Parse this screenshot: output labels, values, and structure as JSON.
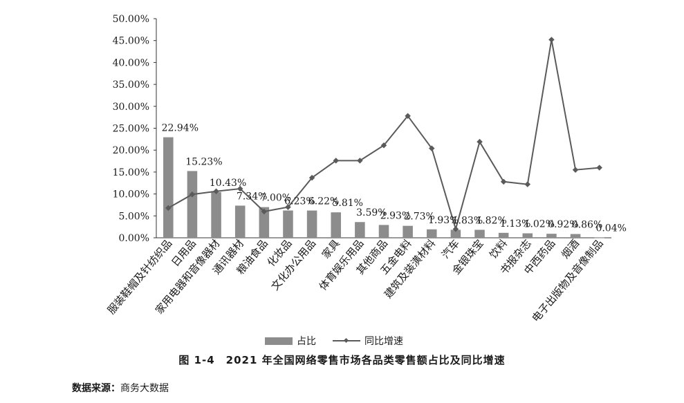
{
  "chart_data": {
    "type": "bar",
    "categories": [
      "服装鞋帽及针纺织品",
      "日用品",
      "家用电器和音像器材",
      "通讯器材",
      "粮油食品",
      "化妆品",
      "文化办公用品",
      "家具",
      "体育娱乐用品",
      "其他商品",
      "五金电料",
      "建筑及装潢材料",
      "汽车",
      "金银珠宝",
      "饮料",
      "书报杂志",
      "中西药品",
      "烟酒",
      "电子出版物及音像制品"
    ],
    "series": [
      {
        "name": "占比",
        "type": "bar",
        "values": [
          22.94,
          15.23,
          10.43,
          7.34,
          7.0,
          6.23,
          6.22,
          5.81,
          3.59,
          2.93,
          2.73,
          1.93,
          1.83,
          1.82,
          1.13,
          1.02,
          0.92,
          0.86,
          0.04
        ],
        "labels": [
          "22.94%",
          "15.23%",
          "10.43%",
          "7.34%",
          "7.00%",
          "6.23%",
          "6.22%",
          "5.81%",
          "3.59%",
          "2.93%",
          "2.73%",
          "1.93%",
          "1.83%",
          "1.82%",
          "1.13%",
          "1.02%",
          "0.92%",
          "0.86%",
          "0.04%"
        ],
        "color": "#8c8c8c"
      },
      {
        "name": "同比增速",
        "type": "line",
        "values": [
          6.8,
          9.9,
          10.6,
          11.2,
          6.0,
          7.0,
          13.7,
          17.6,
          17.6,
          21.1,
          27.8,
          20.4,
          2.0,
          21.9,
          12.8,
          12.2,
          45.2,
          15.5,
          16.0
        ],
        "color": "#5a5a5a"
      }
    ],
    "y_ticks": [
      "0.00%",
      "5.00%",
      "10.00%",
      "15.00%",
      "20.00%",
      "25.00%",
      "30.00%",
      "35.00%",
      "40.00%",
      "45.00%",
      "50.00%"
    ],
    "ylim": [
      0,
      50
    ],
    "legend_position": "bottom",
    "grid": false
  },
  "caption": "图 1-4　2021 年全国网络零售市场各品类零售额占比及同比增速",
  "source": {
    "label": "数据来源：",
    "text": "商务大数据"
  }
}
